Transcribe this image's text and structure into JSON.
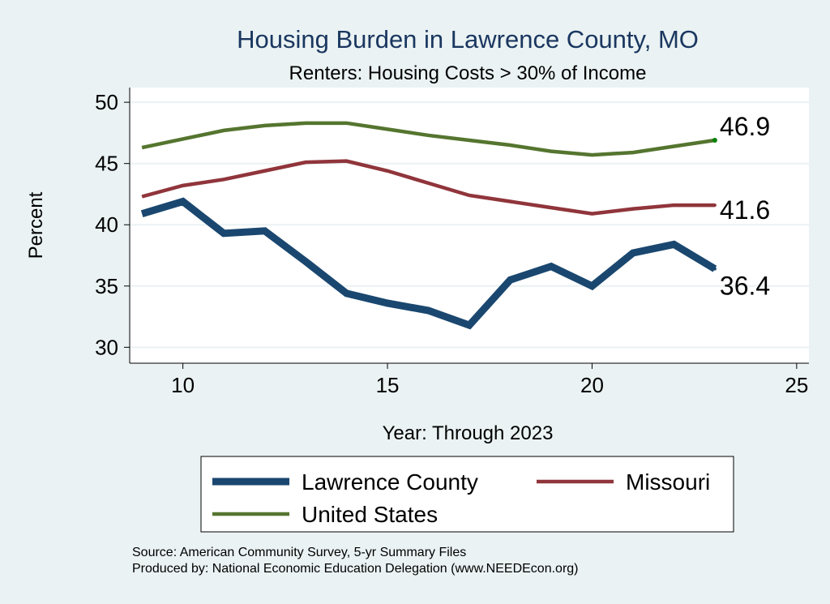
{
  "chart_data": {
    "type": "line",
    "title": "Housing Burden in Lawrence County, MO",
    "subtitle": "Renters: Housing Costs > 30% of Income",
    "xlabel": "Year: Through 2023",
    "ylabel": "Percent",
    "xlim": [
      8.7,
      25.3
    ],
    "ylim": [
      28.7,
      51.2
    ],
    "xticks": [
      10,
      15,
      20,
      25
    ],
    "yticks": [
      30,
      35,
      40,
      45,
      50
    ],
    "grid": true,
    "legend_position": "bottom",
    "x": [
      9,
      10,
      11,
      12,
      13,
      14,
      15,
      16,
      17,
      18,
      19,
      20,
      21,
      22,
      23
    ],
    "series": [
      {
        "name": "Lawrence County",
        "color": "#1a476f",
        "width": 9,
        "end_label": "36.4",
        "values": [
          40.9,
          41.9,
          39.3,
          39.5,
          37.0,
          34.4,
          33.6,
          33.0,
          31.8,
          35.5,
          36.6,
          35.0,
          37.7,
          38.4,
          36.4
        ]
      },
      {
        "name": "Missouri",
        "color": "#90353b",
        "width": 4.5,
        "end_label": "41.6",
        "values": [
          42.3,
          43.2,
          43.7,
          44.4,
          45.1,
          45.2,
          44.4,
          43.4,
          42.4,
          41.9,
          41.4,
          40.9,
          41.3,
          41.6,
          41.6
        ]
      },
      {
        "name": "United States",
        "color": "#55752f",
        "width": 4.5,
        "end_label": "46.9",
        "values": [
          46.3,
          47.0,
          47.7,
          48.1,
          48.3,
          48.3,
          47.8,
          47.3,
          46.9,
          46.5,
          46.0,
          45.7,
          45.9,
          46.4,
          46.9
        ]
      }
    ],
    "notes": [
      "Source: American Community Survey, 5-yr Summary Files",
      "Produced by: National Economic Education Delegation (www.NEEDEcon.org)"
    ]
  }
}
